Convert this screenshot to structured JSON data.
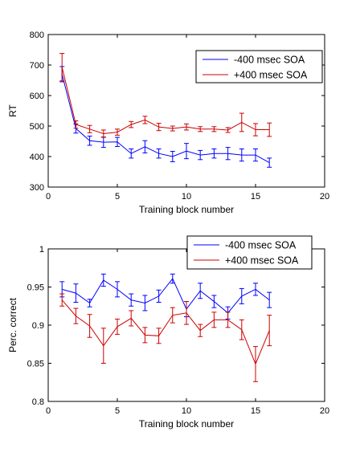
{
  "chart_data": [
    {
      "type": "line",
      "xlabel": "Training block number",
      "ylabel": "RT",
      "xlim": [
        0,
        20
      ],
      "ylim": [
        300,
        800
      ],
      "xticks": [
        0,
        5,
        10,
        15,
        20
      ],
      "yticks": [
        300,
        400,
        500,
        600,
        700,
        800
      ],
      "error_bars": true,
      "legend_position": "top-right",
      "x": [
        1,
        2,
        3,
        4,
        5,
        6,
        7,
        8,
        9,
        10,
        11,
        12,
        13,
        14,
        15,
        16
      ],
      "series": [
        {
          "name": "-400 msec SOA",
          "color": "#0000ff",
          "values": [
            670,
            492,
            452,
            447,
            448,
            410,
            432,
            410,
            400,
            418,
            405,
            410,
            410,
            405,
            405,
            380
          ],
          "errors": [
            25,
            15,
            15,
            17,
            15,
            15,
            20,
            15,
            17,
            25,
            15,
            15,
            20,
            20,
            20,
            15
          ]
        },
        {
          "name": "+400 msec SOA",
          "color": "#cc0000",
          "values": [
            693,
            505,
            490,
            475,
            480,
            505,
            520,
            497,
            492,
            497,
            490,
            490,
            487,
            512,
            488,
            488
          ],
          "errors": [
            45,
            12,
            12,
            12,
            10,
            10,
            12,
            12,
            8,
            10,
            8,
            8,
            8,
            30,
            20,
            22
          ]
        }
      ]
    },
    {
      "type": "line",
      "xlabel": "Training block number",
      "ylabel": "Perc. correct",
      "xlim": [
        0,
        20
      ],
      "ylim": [
        0.8,
        1
      ],
      "xticks": [
        0,
        5,
        10,
        15,
        20
      ],
      "yticks": [
        0.8,
        0.85,
        0.9,
        0.95,
        1
      ],
      "yticklabels": [
        "0.8",
        "0.85",
        "0.9",
        "0.95",
        "1"
      ],
      "error_bars": true,
      "legend_position": "top-right",
      "x": [
        1,
        2,
        3,
        4,
        5,
        6,
        7,
        8,
        9,
        10,
        11,
        12,
        13,
        14,
        15,
        16
      ],
      "series": [
        {
          "name": "-400 msec SOA",
          "color": "#0000ff",
          "values": [
            0.947,
            0.942,
            0.929,
            0.959,
            0.947,
            0.933,
            0.929,
            0.938,
            0.961,
            0.921,
            0.945,
            0.931,
            0.916,
            0.938,
            0.947,
            0.933
          ],
          "errors": [
            0.01,
            0.012,
            0.005,
            0.008,
            0.01,
            0.008,
            0.01,
            0.008,
            0.006,
            0.01,
            0.01,
            0.008,
            0.008,
            0.01,
            0.008,
            0.01
          ]
        },
        {
          "name": "+400 msec SOA",
          "color": "#cc0000",
          "values": [
            0.933,
            0.912,
            0.899,
            0.873,
            0.898,
            0.909,
            0.887,
            0.886,
            0.913,
            0.916,
            0.893,
            0.907,
            0.907,
            0.894,
            0.849,
            0.893
          ],
          "errors": [
            0.008,
            0.01,
            0.015,
            0.023,
            0.01,
            0.01,
            0.01,
            0.01,
            0.01,
            0.015,
            0.008,
            0.01,
            0.01,
            0.013,
            0.023,
            0.02
          ]
        }
      ]
    }
  ]
}
